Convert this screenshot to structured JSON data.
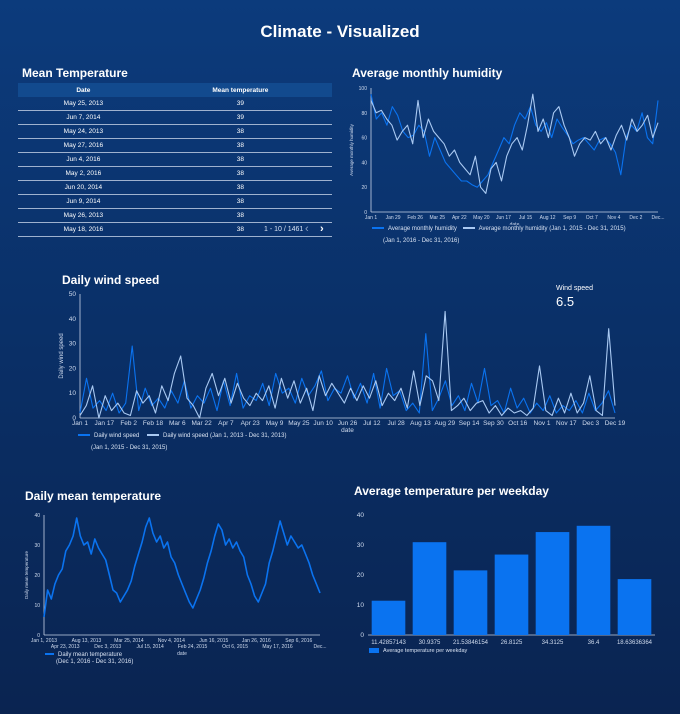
{
  "page_title": "Climate - Visualized",
  "colors": {
    "primary": "#0a73f0",
    "secondary": "#a9c9f2",
    "background": "#0b3470"
  },
  "table": {
    "title": "Mean Temperature",
    "columns": [
      "Date",
      "Mean temperature"
    ],
    "rows": [
      [
        "May 25, 2013",
        "39"
      ],
      [
        "Jun 7, 2014",
        "39"
      ],
      [
        "May 24, 2013",
        "38"
      ],
      [
        "May 27, 2016",
        "38"
      ],
      [
        "Jun 4, 2016",
        "38"
      ],
      [
        "May 2, 2016",
        "38"
      ],
      [
        "Jun 20, 2014",
        "38"
      ],
      [
        "Jun 9, 2014",
        "38"
      ],
      [
        "May 26, 2013",
        "38"
      ],
      [
        "May 18, 2016",
        "38"
      ]
    ],
    "pagination": "1 - 10 / 1461",
    "prev_icon": "chevron-left-icon",
    "next_icon": "chevron-right-icon"
  },
  "scorecard": {
    "label": "Wind speed",
    "value": "6.5"
  },
  "chart_data": [
    {
      "id": "humidity",
      "type": "line",
      "title": "Average monthly humidity",
      "xlabel": "date",
      "ylabel": "Average monthly humidity",
      "ylim": [
        0,
        100
      ],
      "yticks": [
        0,
        20,
        40,
        60,
        80,
        100
      ],
      "xticks": [
        "Jan 1",
        "Jan 29",
        "Feb 26",
        "Mar 25",
        "Apr 22",
        "May 20",
        "Jun 17",
        "Jul 15",
        "Aug 12",
        "Sep 9",
        "Oct 7",
        "Nov 4",
        "Dec 2",
        "Dec..."
      ],
      "grid": false,
      "legend": "bottom",
      "series": [
        {
          "name": "Average monthly humidity",
          "subtitle": "(Jan 1, 2016 - Dec 31, 2016)",
          "color": "#0a73f0",
          "values": [
            95,
            75,
            80,
            70,
            85,
            78,
            65,
            60,
            62,
            70,
            65,
            45,
            60,
            50,
            40,
            35,
            30,
            25,
            25,
            22,
            20,
            25,
            30,
            40,
            50,
            60,
            55,
            70,
            80,
            75,
            85,
            70,
            65,
            72,
            60,
            75,
            68,
            62,
            55,
            58,
            60,
            55,
            50,
            58,
            60,
            55,
            48,
            30,
            60,
            70,
            65,
            80,
            60,
            55,
            90
          ]
        },
        {
          "name": "Average monthly humidity (Jan 1, 2015 - Dec 31, 2015)",
          "color": "#a9c9f2",
          "values": [
            90,
            80,
            82,
            75,
            70,
            58,
            65,
            70,
            55,
            90,
            60,
            75,
            65,
            60,
            55,
            45,
            50,
            40,
            35,
            30,
            45,
            20,
            15,
            35,
            40,
            25,
            45,
            55,
            60,
            50,
            70,
            95,
            65,
            75,
            60,
            80,
            85,
            70,
            60,
            45,
            55,
            60,
            58,
            65,
            55,
            60,
            50,
            62,
            70,
            58,
            75,
            65,
            70,
            78,
            60,
            72
          ]
        }
      ]
    },
    {
      "id": "wind",
      "type": "line",
      "title": "Daily wind speed",
      "xlabel": "date",
      "ylabel": "Daily wind speed",
      "ylim": [
        0,
        50
      ],
      "yticks": [
        0,
        10,
        20,
        30,
        40,
        50
      ],
      "xticks": [
        "Jan 1",
        "Jan 17",
        "Feb 2",
        "Feb 18",
        "Mar 6",
        "Mar 22",
        "Apr 7",
        "Apr 23",
        "May 9",
        "May 25",
        "Jun 10",
        "Jun 26",
        "Jul 12",
        "Jul 28",
        "Aug 13",
        "Aug 29",
        "Sep 14",
        "Sep 30",
        "Oct 16",
        "Nov 1",
        "Nov 17",
        "Dec 3",
        "Dec 19"
      ],
      "grid": false,
      "legend": "bottom",
      "series": [
        {
          "name": "Daily wind speed",
          "subtitle": "(Jan 1, 2015 - Dec 31, 2015)",
          "color": "#0a73f0",
          "values": [
            2,
            16,
            4,
            7,
            3,
            10,
            2,
            6,
            29,
            3,
            12,
            5,
            8,
            4,
            11,
            6,
            15,
            4,
            9,
            6,
            12,
            3,
            15,
            5,
            18,
            4,
            9,
            7,
            14,
            5,
            18,
            10,
            12,
            6,
            16,
            9,
            13,
            19,
            7,
            12,
            10,
            17,
            8,
            14,
            6,
            18,
            4,
            20,
            9,
            11,
            3,
            6,
            2,
            34,
            3,
            8,
            15,
            5,
            9,
            3,
            14,
            6,
            20,
            5,
            7,
            2,
            12,
            4,
            8,
            2,
            6,
            3,
            9,
            2,
            5,
            3,
            7,
            2,
            10,
            3,
            6,
            11,
            2
          ]
        },
        {
          "name": "Daily wind speed (Jan 1, 2013 - Dec 31, 2013)",
          "color": "#a9c9f2",
          "values": [
            1,
            5,
            13,
            0,
            9,
            3,
            6,
            2,
            1,
            11,
            6,
            9,
            2,
            13,
            7,
            18,
            25,
            8,
            5,
            0,
            12,
            18,
            9,
            16,
            6,
            14,
            8,
            5,
            10,
            7,
            13,
            4,
            16,
            8,
            15,
            6,
            12,
            3,
            17,
            9,
            14,
            10,
            6,
            12,
            7,
            13,
            8,
            15,
            5,
            10,
            7,
            12,
            4,
            19,
            5,
            17,
            15,
            7,
            43,
            3,
            5,
            8,
            3,
            6,
            7,
            2,
            5,
            1,
            4,
            2,
            3,
            1,
            4,
            21,
            3,
            1,
            8,
            2,
            10,
            2,
            6,
            17,
            3,
            1,
            36,
            5
          ]
        }
      ]
    },
    {
      "id": "temperature",
      "type": "line",
      "title": "Daily mean temperature",
      "xlabel": "date",
      "ylabel": "Daily mean temperature",
      "ylim": [
        0,
        40
      ],
      "yticks": [
        0,
        10,
        20,
        30,
        40
      ],
      "xticks": [
        "Jan 1, 2013",
        "Apr 23, 2013",
        "Aug 13, 2013",
        "Dec 3, 2013",
        "Mar 25, 2014",
        "Jul 15, 2014",
        "Nov 4, 2014",
        "Feb 24, 2015",
        "Jun 16, 2015",
        "Oct 6, 2015",
        "Jan 26, 2016",
        "May 17, 2016",
        "Sep 6, 2016",
        "Dec..."
      ],
      "grid": false,
      "legend": "bottom",
      "series": [
        {
          "name": "Daily mean temperature",
          "subtitle": "(Dec 1, 2016 - Dec 31, 2016)",
          "color": "#0a73f0",
          "values": [
            6,
            15,
            12,
            17,
            20,
            22,
            28,
            30,
            33,
            39,
            33,
            30,
            31,
            27,
            32,
            29,
            27,
            25,
            20,
            15,
            14,
            11,
            13,
            15,
            18,
            23,
            27,
            31,
            36,
            39,
            34,
            31,
            33,
            29,
            31,
            26,
            24,
            20,
            17,
            14,
            11,
            9,
            12,
            15,
            19,
            24,
            28,
            33,
            37,
            35,
            30,
            32,
            29,
            31,
            28,
            26,
            20,
            17,
            13,
            11,
            14,
            17,
            24,
            28,
            33,
            38,
            34,
            30,
            33,
            31,
            29,
            30,
            27,
            24,
            20,
            17,
            14
          ]
        }
      ]
    },
    {
      "id": "weekday",
      "type": "bar",
      "title": "Average temperature per weekday",
      "ylim": [
        0,
        40
      ],
      "yticks": [
        0,
        10,
        20,
        30,
        40
      ],
      "categories": [
        "11.42857143",
        "30.9375",
        "21.53846154",
        "26.8125",
        "34.3125",
        "36.4",
        "18.63636364"
      ],
      "values": [
        11.42857143,
        30.9375,
        21.53846154,
        26.8125,
        34.3125,
        36.4,
        18.63636364
      ],
      "grid": false,
      "legend": "bottom",
      "series": [
        {
          "name": "Average temperature per weekday",
          "color": "#0a73f0"
        }
      ]
    }
  ]
}
